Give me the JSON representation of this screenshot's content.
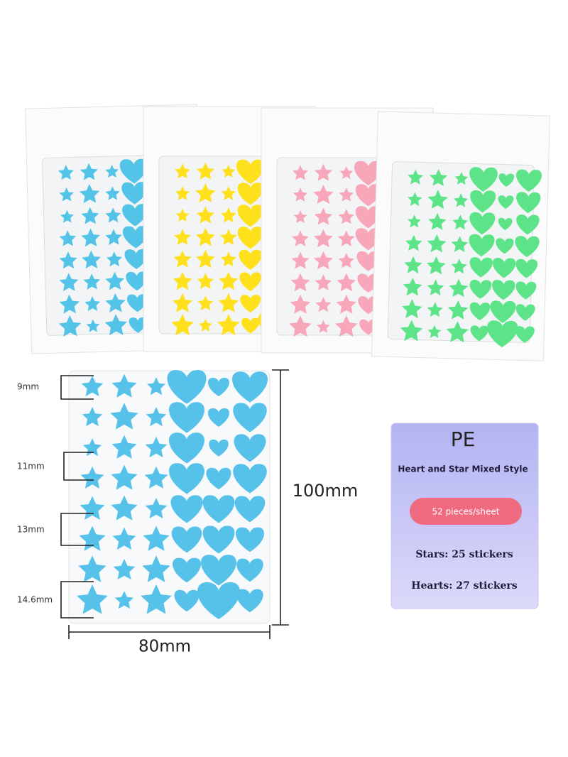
{
  "dimensions": {
    "size_labels": [
      "9mm",
      "11mm",
      "13mm",
      "14.6mm"
    ],
    "height": "100mm",
    "width": "80mm"
  },
  "info_card": {
    "material": "PE",
    "style": "Heart and Star Mixed Style",
    "badge": "52 pieces/sheet",
    "stars": "Stars: 25 stickers",
    "hearts": "Hearts: 27 stickers"
  }
}
